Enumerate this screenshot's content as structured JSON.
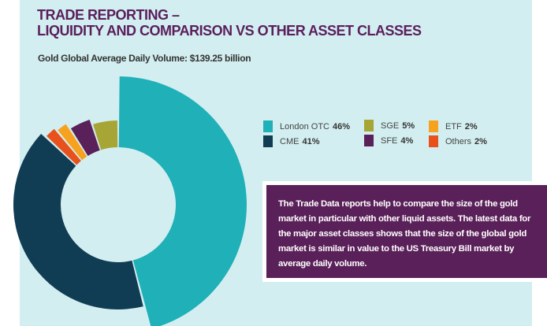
{
  "header": {
    "title_line1": "TRADE REPORTING –",
    "title_line2": "LIQUIDITY AND COMPARISON VS OTHER ASSET CLASSES",
    "subtitle": "Gold Global Average Daily Volume: $139.25 billion"
  },
  "chart_data": {
    "type": "pie",
    "variant": "donut with varying slice radii",
    "categories": [
      "London OTC",
      "CME",
      "Others",
      "ETF",
      "SFE",
      "SGE"
    ],
    "values": [
      46,
      41,
      2,
      2,
      4,
      5
    ],
    "unit": "%",
    "colors": [
      "#1fb0b8",
      "#103c54",
      "#e8501c",
      "#f6a21e",
      "#5a2059",
      "#a6a536"
    ],
    "legend": {
      "placement": "right",
      "items": [
        {
          "label": "London OTC",
          "value": "46%",
          "color": "#1fb0b8"
        },
        {
          "label": "CME",
          "value": "41%",
          "color": "#103c54"
        },
        {
          "label": "SGE",
          "value": "5%",
          "color": "#a6a536"
        },
        {
          "label": "SFE",
          "value": "4%",
          "color": "#5a2059"
        },
        {
          "label": "ETF",
          "value": "2%",
          "color": "#f6a21e"
        },
        {
          "label": "Others",
          "value": "2%",
          "color": "#e8501c"
        }
      ]
    }
  },
  "info": {
    "text": "The Trade Data reports help to compare the size of the gold market in particular with other liquid assets. The latest data for the major asset classes shows that the size of the global gold market is similar in value to the US Treasury Bill market by average daily volume."
  },
  "colors": {
    "panel_bg": "#d3eef0",
    "title": "#5a1f5c",
    "info_bg": "#5a2059"
  }
}
